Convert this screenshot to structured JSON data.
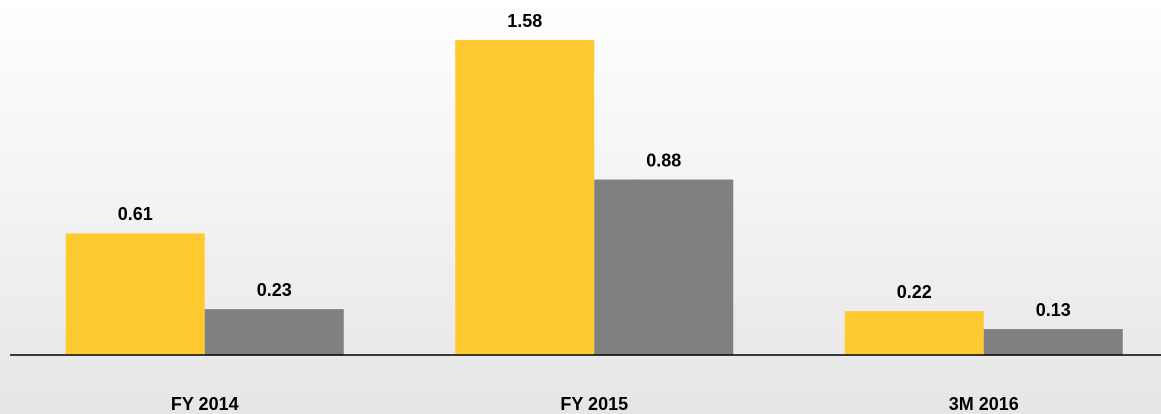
{
  "chart_data": {
    "type": "bar",
    "categories": [
      "FY 2014",
      "FY 2015",
      "3M 2016"
    ],
    "series": [
      {
        "color": "#ffca30",
        "values": [
          0.61,
          1.58,
          0.22
        ]
      },
      {
        "color": "#808080",
        "values": [
          0.23,
          0.88,
          0.13
        ]
      }
    ]
  }
}
